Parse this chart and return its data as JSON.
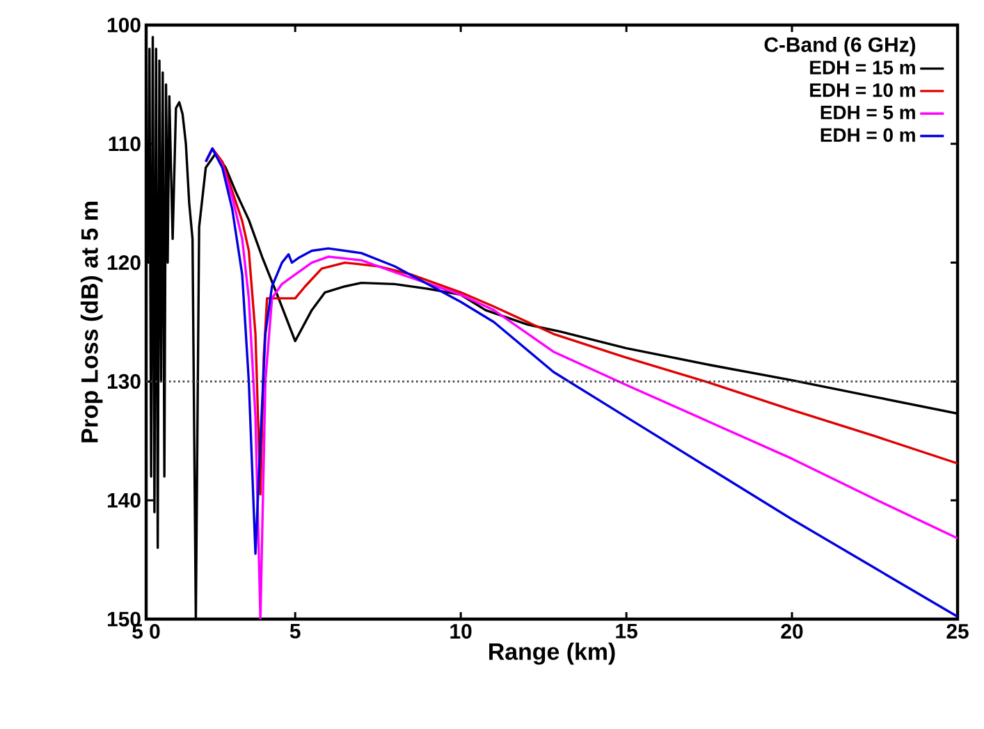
{
  "chart_data": {
    "type": "line",
    "xlabel": "Range (km)",
    "ylabel": "Prop Loss (dB) at 5 m",
    "legend_title": "C-Band (6 GHz)",
    "xlim": [
      0.5,
      25
    ],
    "xticks": [
      {
        "value": 0.5,
        "label": "5 0"
      },
      5,
      10,
      15,
      20,
      25
    ],
    "ylim": [
      150,
      100
    ],
    "yticks": [
      100,
      110,
      120,
      130,
      140,
      150
    ],
    "legend": "top right",
    "line_style": "solid",
    "grid": false,
    "ref_lines": [
      {
        "axis": "y",
        "value": 130,
        "color": "#404040",
        "line_style": "dotted"
      }
    ],
    "series": [
      {
        "name": "EDH = 15 m",
        "color": "#000000",
        "x": [
          0.55,
          0.6,
          0.65,
          0.7,
          0.75,
          0.8,
          0.85,
          0.9,
          0.95,
          1.0,
          1.05,
          1.1,
          1.15,
          1.2,
          1.3,
          1.4,
          1.5,
          1.6,
          1.7,
          1.8,
          1.9,
          2.0,
          2.1,
          2.3,
          2.6,
          2.9,
          3.2,
          3.6,
          4.0,
          4.5,
          5.0,
          5.5,
          5.9,
          6.5,
          7.0,
          8.0,
          9.0,
          10.0,
          10.75,
          12.0,
          13.0,
          15.0,
          17.5,
          20.0,
          22.5,
          25.0
        ],
        "values": [
          120,
          102,
          138,
          101,
          141,
          102,
          144,
          103,
          130,
          104,
          138,
          105,
          120,
          106,
          118,
          107,
          106.5,
          107.5,
          110,
          115,
          118,
          150,
          117,
          112,
          110.8,
          112,
          114,
          116.4,
          119.5,
          123,
          126.6,
          124,
          122.5,
          122,
          121.7,
          121.8,
          122.2,
          122.7,
          124,
          125.2,
          125.8,
          127.2,
          128.6,
          129.9,
          131.3,
          132.7
        ]
      },
      {
        "name": "EDH = 10 m",
        "color": "#e00000",
        "x": [
          2.3,
          2.5,
          2.8,
          3.1,
          3.4,
          3.6,
          3.8,
          3.95,
          4.05,
          4.15,
          4.5,
          5.0,
          5.3,
          5.8,
          6.5,
          7.5,
          8.5,
          10,
          11,
          12.8,
          15,
          17.5,
          20,
          22.5,
          25
        ],
        "values": [
          111.5,
          110.4,
          111.5,
          114,
          116.5,
          119,
          126,
          139.5,
          128,
          123,
          123,
          123,
          122,
          120.5,
          120,
          120.3,
          121,
          122.5,
          123.7,
          126,
          128,
          130.1,
          132.4,
          134.6,
          136.9
        ]
      },
      {
        "name": "EDH = 5 m",
        "color": "#ff00ff",
        "x": [
          2.3,
          2.5,
          2.8,
          3.1,
          3.4,
          3.6,
          3.8,
          3.95,
          4.1,
          4.3,
          4.6,
          5.0,
          5.5,
          6.0,
          7.0,
          8.0,
          10,
          11,
          12.8,
          15,
          17.5,
          20,
          22.5,
          25
        ],
        "values": [
          111.5,
          110.4,
          111.8,
          114.5,
          118,
          123,
          133,
          150,
          130,
          123,
          121.8,
          121,
          120,
          119.5,
          119.8,
          120.8,
          122.7,
          124,
          127.5,
          130.3,
          133.4,
          136.5,
          139.9,
          143.2
        ]
      },
      {
        "name": "EDH = 0 m",
        "color": "#0000e0",
        "x": [
          2.3,
          2.5,
          2.8,
          3.1,
          3.4,
          3.6,
          3.8,
          3.95,
          4.1,
          4.3,
          4.6,
          4.8,
          4.9,
          5.1,
          5.5,
          6.0,
          7.0,
          8.0,
          10,
          11,
          12.8,
          15,
          17.5,
          20,
          22.5,
          25
        ],
        "values": [
          111.5,
          110.4,
          112,
          115.5,
          121,
          130,
          144.5,
          135,
          126,
          122,
          120,
          119.3,
          120,
          119.6,
          119,
          118.8,
          119.2,
          120.3,
          123.3,
          125,
          129.2,
          133,
          137.3,
          141.6,
          145.7,
          149.8
        ]
      }
    ]
  }
}
